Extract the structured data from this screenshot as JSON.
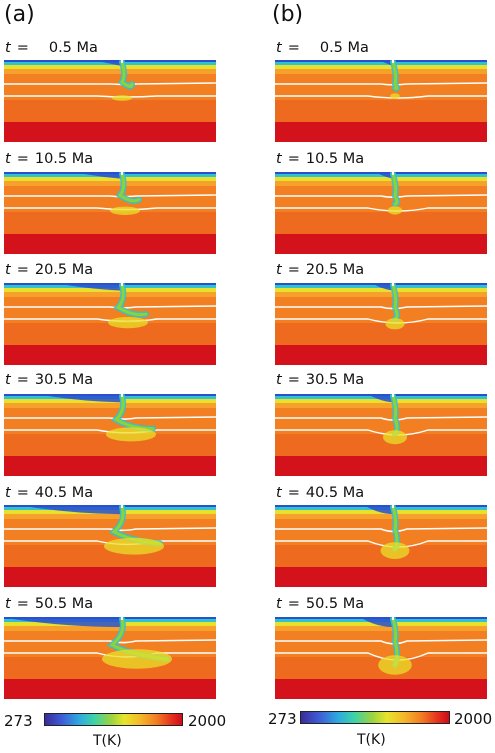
{
  "panels": [
    {
      "label": "(a)",
      "snapshots": [
        {
          "t_label": "t",
          "eq": "=",
          "time": "0.5 Ma",
          "stage": 0.0
        },
        {
          "t_label": "t",
          "eq": "=",
          "time": "10.5 Ma",
          "stage": 0.2
        },
        {
          "t_label": "t",
          "eq": "=",
          "time": "20.5 Ma",
          "stage": 0.4
        },
        {
          "t_label": "t",
          "eq": "=",
          "time": "30.5 Ma",
          "stage": 0.6
        },
        {
          "t_label": "t",
          "eq": "=",
          "time": "40.5 Ma",
          "stage": 0.8
        },
        {
          "t_label": "t",
          "eq": "=",
          "time": "50.5 Ma",
          "stage": 1.0
        }
      ],
      "colorbar": {
        "min": "273",
        "max": "2000",
        "unit": "T(K)"
      }
    },
    {
      "label": "(b)",
      "snapshots": [
        {
          "t_label": "t",
          "eq": "=",
          "time": "0.5 Ma",
          "stage": 0.0
        },
        {
          "t_label": "t",
          "eq": "=",
          "time": "10.5 Ma",
          "stage": 0.2
        },
        {
          "t_label": "t",
          "eq": "=",
          "time": "20.5 Ma",
          "stage": 0.4
        },
        {
          "t_label": "t",
          "eq": "=",
          "time": "30.5 Ma",
          "stage": 0.6
        },
        {
          "t_label": "t",
          "eq": "=",
          "time": "40.5 Ma",
          "stage": 0.8
        },
        {
          "t_label": "t",
          "eq": "=",
          "time": "50.5 Ma",
          "stage": 1.0
        }
      ],
      "colorbar": {
        "min": "273",
        "max": "2000",
        "unit": "T(K)"
      }
    }
  ],
  "colors": {
    "surface_blue": "#2a4fcf",
    "cyan": "#2fc3d0",
    "green": "#8ad43a",
    "yellow": "#e8e02a",
    "orange_light": "#f6a12c",
    "orange": "#f27f22",
    "orange_deep": "#ee6a1f",
    "red": "#e0271f",
    "deep_red": "#d4121c",
    "boundary_line": "#ffffff"
  }
}
